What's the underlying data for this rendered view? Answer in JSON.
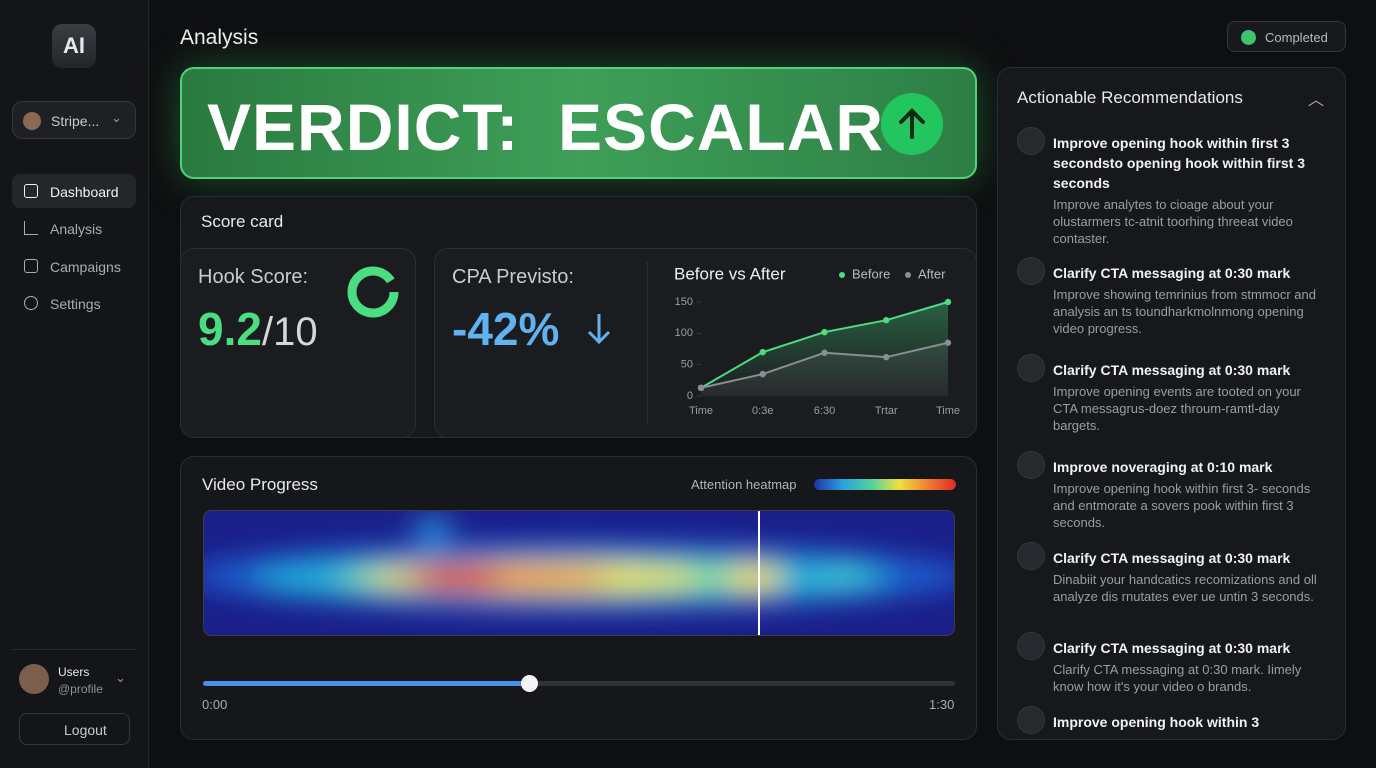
{
  "sidebar": {
    "logo": "AI",
    "workspace": "Stripe...",
    "nav": [
      "Dashboard",
      "Analysis",
      "Campaigns",
      "Settings"
    ],
    "user": {
      "name": "Users",
      "handle": "@profile"
    },
    "logout": "Logout"
  },
  "header": {
    "title": "Analysis",
    "status": "Completed"
  },
  "verdict": "VERDICT:  ESCALAR",
  "scorecard": {
    "title": "Score card",
    "hook": {
      "label": "Hook Score:",
      "value": "9.2",
      "max": "/10"
    },
    "cpa": {
      "label": "CPA Previsto:",
      "value": "-42%"
    }
  },
  "chart_data": {
    "type": "line",
    "title": "Before vs After",
    "categories": [
      "Time",
      "0:3e",
      "6:30",
      "Trtar",
      "Time"
    ],
    "series": [
      {
        "name": "Before",
        "color": "#4ade80",
        "values": [
          13,
          70,
          102,
          121,
          150
        ]
      },
      {
        "name": "After",
        "color": "#8a8d92",
        "values": [
          13,
          35,
          69,
          62,
          85
        ]
      }
    ],
    "ylim": [
      0,
      150
    ],
    "yticks": [
      0,
      50,
      100,
      150
    ]
  },
  "video": {
    "title": "Video Progress",
    "legend": "Attention heatmap",
    "start": "0:00",
    "end": "1:30"
  },
  "recommendations": {
    "title": "Actionable Recommendations",
    "items": [
      {
        "title": "Improve opening hook within first 3 secondsto opening hook within first 3 seconds",
        "body": "Improve analytes to cioage about your olustarmers tc-atnit toorhing threeat video contaster."
      },
      {
        "title": "Clarify CTA messaging at 0:30 mark",
        "body": "Improve showing temrinius from stmmocr and analysis an ts toundharkmolnmong opening video progress."
      },
      {
        "title": "Clarify CTA messaging at 0:30 mark",
        "body": "Improve opening events are tooted on your CTA messagrus-doez throum-ramtl-day bargets."
      },
      {
        "title": "Improve noveraging at 0:10 mark",
        "body": "Improve opening hook within first 3- seconds and entmorate a sovers pook within first 3 seconds."
      },
      {
        "title": "Clarify CTA messaging at 0:30 mark",
        "body": "Dinabiit your handcatics recomizations and oll analyze dis rnutates ever ue untin 3 seconds."
      },
      {
        "title": "Clarify CTA messaging at 0:30 mark",
        "body": "Clarify CTA messaging at 0:30 mark. Iimely know how it's your video o brands."
      },
      {
        "title": "Improve opening hook within 3"
      }
    ]
  }
}
